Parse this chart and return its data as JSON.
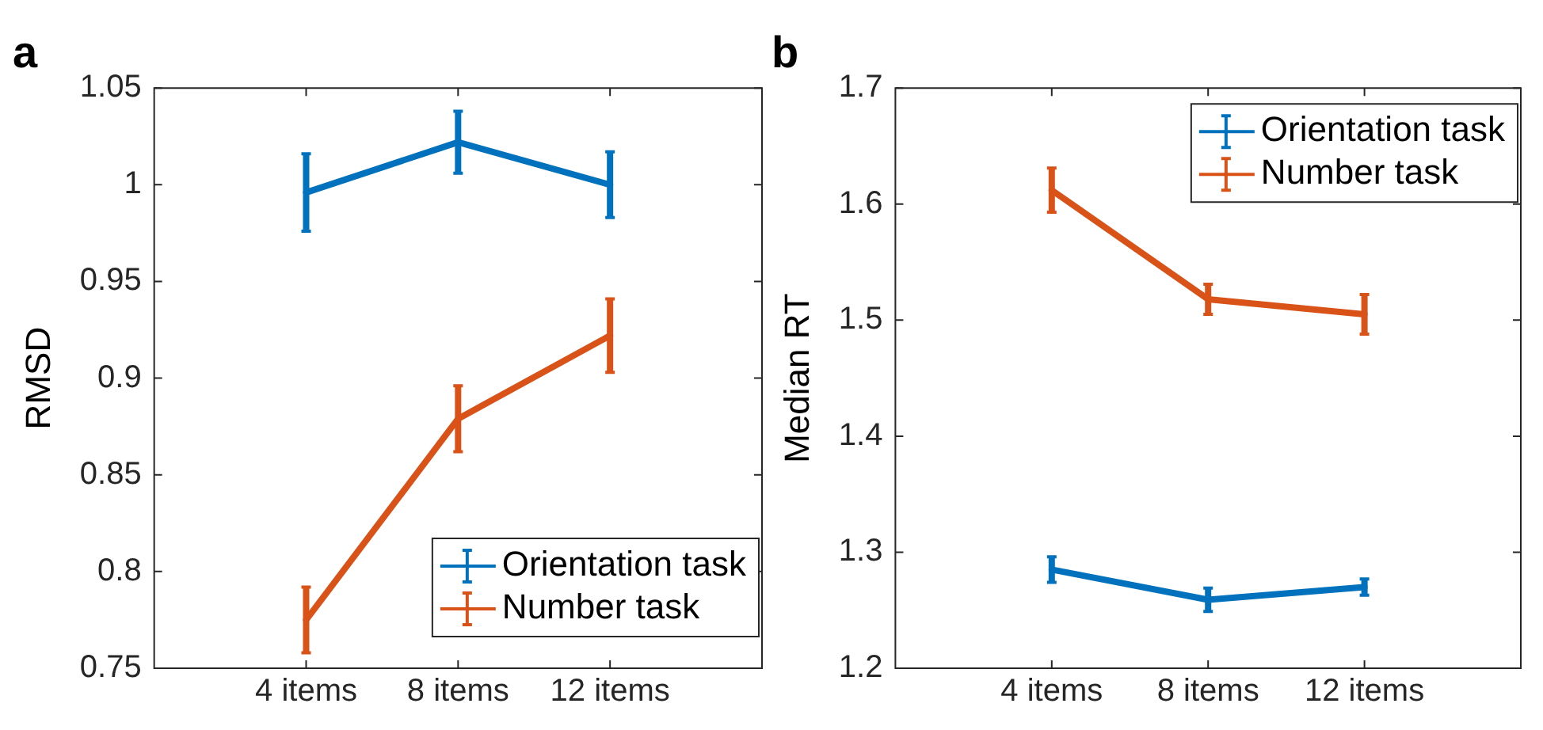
{
  "chart_data": [
    {
      "type": "line",
      "title": "a",
      "ylabel": "RMSD",
      "categories": [
        "4 items",
        "8 items",
        "12 items"
      ],
      "series": [
        {
          "name": "Orientation task",
          "color": "#0072bd",
          "values": [
            0.996,
            1.022,
            1.0
          ],
          "errors": [
            0.02,
            0.016,
            0.017
          ]
        },
        {
          "name": "Number task",
          "color": "#d95319",
          "values": [
            0.775,
            0.879,
            0.922
          ],
          "errors": [
            0.017,
            0.017,
            0.019
          ]
        }
      ],
      "ylim": [
        0.75,
        1.05
      ],
      "yticks": [
        0.75,
        0.8,
        0.85,
        0.9,
        0.95,
        1,
        1.05
      ],
      "grid": false,
      "legend": "bottom right",
      "marker": "none",
      "line_style": "solid"
    },
    {
      "type": "line",
      "title": "b",
      "ylabel": "Median RT",
      "categories": [
        "4 items",
        "8 items",
        "12 items"
      ],
      "series": [
        {
          "name": "Orientation task",
          "color": "#0072bd",
          "values": [
            1.285,
            1.259,
            1.27
          ],
          "errors": [
            0.011,
            0.01,
            0.007
          ]
        },
        {
          "name": "Number task",
          "color": "#d95319",
          "values": [
            1.612,
            1.518,
            1.505
          ],
          "errors": [
            0.019,
            0.013,
            0.017
          ]
        }
      ],
      "ylim": [
        1.2,
        1.7
      ],
      "yticks": [
        1.2,
        1.3,
        1.4,
        1.5,
        1.6,
        1.7
      ],
      "grid": false,
      "legend": "top right",
      "marker": "none",
      "line_style": "solid"
    }
  ]
}
